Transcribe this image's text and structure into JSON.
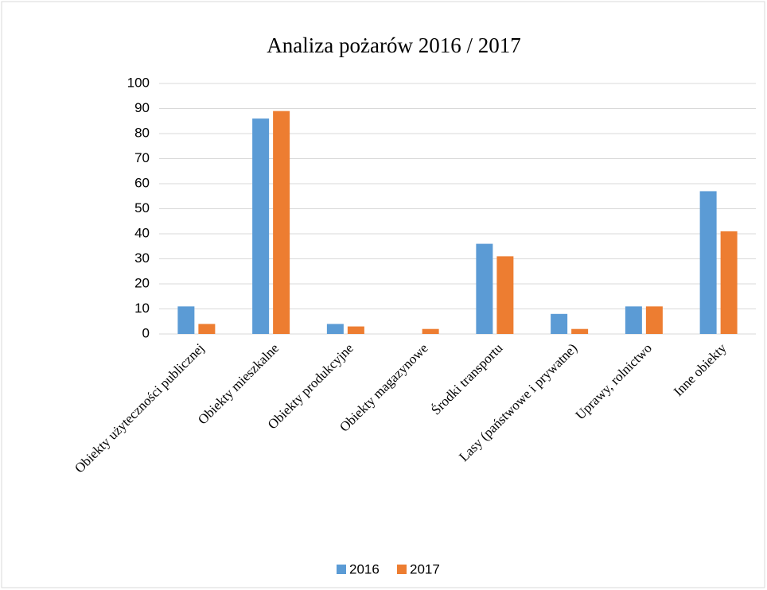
{
  "chart_data": {
    "type": "bar",
    "title": "Analiza pożarów 2016 / 2017",
    "categories": [
      "Obiekty użyteczności publicznej",
      "Obiekty mieszkalne",
      "Obiekty produkcyjne",
      "Obiekty magazynowe",
      "Środki transportu",
      "Lasy (państwowe i prywatne)",
      "Uprawy, rolnictwo",
      "Inne obiekty"
    ],
    "series": [
      {
        "name": "2016",
        "color": "#5b9bd5",
        "values": [
          11,
          86,
          4,
          0,
          36,
          8,
          11,
          57
        ]
      },
      {
        "name": "2017",
        "color": "#ed7d31",
        "values": [
          4,
          89,
          3,
          2,
          31,
          2,
          11,
          41
        ]
      }
    ],
    "ylim": [
      0,
      100
    ],
    "yticks": [
      0,
      10,
      20,
      30,
      40,
      50,
      60,
      70,
      80,
      90,
      100
    ],
    "grid": true,
    "legend": "bottom"
  }
}
